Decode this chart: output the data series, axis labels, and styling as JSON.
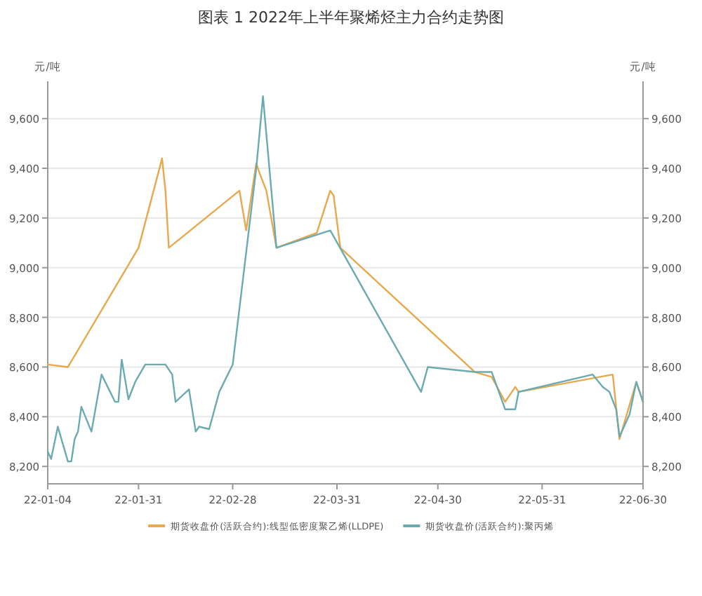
{
  "chart_data": {
    "type": "line",
    "title": "图表 1 2022年上半年聚烯烃主力合约走势图",
    "ylabel": "元/吨",
    "y2label": "元/吨",
    "xlim": [
      "2022-01-04",
      "2022-06-30"
    ],
    "xticks": [
      {
        "value": "2022-01-04",
        "label": "22-01-04"
      },
      {
        "value": "2022-01-31",
        "label": "22-01-31"
      },
      {
        "value": "2022-02-28",
        "label": "22-02-28"
      },
      {
        "value": "2022-03-31",
        "label": "22-03-31"
      },
      {
        "value": "2022-04-30",
        "label": "22-04-30"
      },
      {
        "value": "2022-05-31",
        "label": "22-05-31"
      },
      {
        "value": "2022-06-30",
        "label": "22-06-30"
      }
    ],
    "ylim": [
      8130,
      9750
    ],
    "yticks": [
      {
        "value": 8200,
        "label": "8,200"
      },
      {
        "value": 8400,
        "label": "8,400"
      },
      {
        "value": 8600,
        "label": "8,600"
      },
      {
        "value": 8800,
        "label": "8,800"
      },
      {
        "value": 9000,
        "label": "9,000"
      },
      {
        "value": 9200,
        "label": "9,200"
      },
      {
        "value": 9400,
        "label": "9,400"
      },
      {
        "value": 9600,
        "label": "9,600"
      }
    ],
    "y2lim": [
      8130,
      9750
    ],
    "y2ticks": [
      {
        "value": 8200,
        "label": "8,200"
      },
      {
        "value": 8400,
        "label": "8,400"
      },
      {
        "value": 8600,
        "label": "8,600"
      },
      {
        "value": 8800,
        "label": "8,800"
      },
      {
        "value": 9000,
        "label": "9,000"
      },
      {
        "value": 9200,
        "label": "9,200"
      },
      {
        "value": 9400,
        "label": "9,400"
      },
      {
        "value": 9600,
        "label": "9,600"
      }
    ],
    "grid": "y",
    "legend": "bottom",
    "series": [
      {
        "name": "期货收盘价(活跃合约):线型低密度聚乙烯(LLDPE)",
        "color": "#e8a84c",
        "x": [
          "2022-01-04",
          "2022-01-10",
          "2022-01-31",
          "2022-02-07",
          "2022-02-08",
          "2022-02-09",
          "2022-03-02",
          "2022-03-04",
          "2022-03-07",
          "2022-03-08",
          "2022-03-10",
          "2022-03-13",
          "2022-03-25",
          "2022-03-29",
          "2022-03-30",
          "2022-04-01",
          "2022-05-11",
          "2022-05-16",
          "2022-05-20",
          "2022-05-23",
          "2022-05-24",
          "2022-06-21",
          "2022-06-23",
          "2022-06-28",
          "2022-06-30"
        ],
        "values": [
          8610,
          8600,
          9080,
          9440,
          9310,
          9080,
          9310,
          9150,
          9420,
          9380,
          9310,
          9080,
          9140,
          9310,
          9290,
          9080,
          8580,
          8560,
          8460,
          8520,
          8500,
          8570,
          8310,
          8540,
          8460
        ]
      },
      {
        "name": "期货收盘价(活跃合约):聚丙烯",
        "color": "#6aaab0",
        "x": [
          "2022-01-04",
          "2022-01-05",
          "2022-01-07",
          "2022-01-10",
          "2022-01-11",
          "2022-01-12",
          "2022-01-13",
          "2022-01-14",
          "2022-01-17",
          "2022-01-20",
          "2022-01-24",
          "2022-01-25",
          "2022-01-26",
          "2022-01-28",
          "2022-01-30",
          "2022-02-02",
          "2022-02-08",
          "2022-02-10",
          "2022-02-11",
          "2022-02-15",
          "2022-02-17",
          "2022-02-18",
          "2022-02-21",
          "2022-02-24",
          "2022-02-28",
          "2022-03-07",
          "2022-03-09",
          "2022-03-13",
          "2022-03-29",
          "2022-04-25",
          "2022-04-27",
          "2022-05-11",
          "2022-05-16",
          "2022-05-20",
          "2022-05-23",
          "2022-05-24",
          "2022-06-15",
          "2022-06-18",
          "2022-06-20",
          "2022-06-22",
          "2022-06-23",
          "2022-06-26",
          "2022-06-28",
          "2022-06-30"
        ],
        "values": [
          8260,
          8230,
          8360,
          8220,
          8220,
          8310,
          8340,
          8440,
          8340,
          8570,
          8460,
          8460,
          8630,
          8470,
          8540,
          8610,
          8610,
          8570,
          8460,
          8510,
          8340,
          8360,
          8350,
          8500,
          8610,
          9400,
          9690,
          9080,
          9150,
          8500,
          8600,
          8580,
          8580,
          8430,
          8430,
          8500,
          8570,
          8520,
          8500,
          8430,
          8320,
          8410,
          8540,
          8460
        ]
      }
    ]
  }
}
